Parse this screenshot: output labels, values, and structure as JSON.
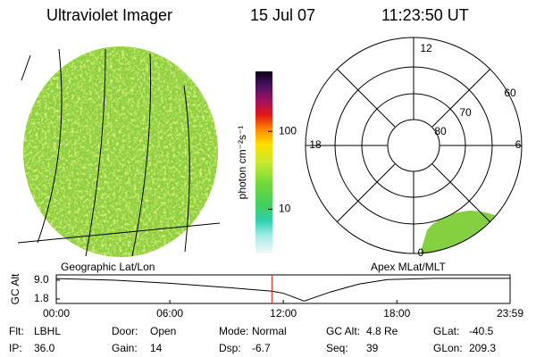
{
  "header": {
    "instrument": "Ultraviolet Imager",
    "date": "15 Jul 07",
    "time": "11:23:50 UT"
  },
  "colorbar": {
    "label": "photon cm⁻²s⁻¹",
    "log": true,
    "lim": [
      2.7,
      590
    ],
    "ticks": [
      10,
      100
    ]
  },
  "left_panel": {
    "label": "Geographic Lat/Lon"
  },
  "right_panel": {
    "label": "Apex MLat/MLT",
    "mlt_labels": [
      "12",
      "6",
      "0",
      "18"
    ],
    "mlat_labels": [
      "60",
      "70",
      "80"
    ]
  },
  "timeline": {
    "ylabel": "GC Alt",
    "xlim": [
      0,
      23.983
    ],
    "ylim": [
      0.1,
      11
    ],
    "xticks": [
      {
        "value": 0,
        "label": "00:00"
      },
      {
        "value": 6,
        "label": "06:00"
      },
      {
        "value": 12,
        "label": "12:00"
      },
      {
        "value": 18,
        "label": "18:00"
      },
      {
        "value": 23.983,
        "label": "23:59"
      }
    ],
    "yticks": [
      {
        "value": 9,
        "label": "9.0"
      },
      {
        "value": 1.8,
        "label": "1.8"
      }
    ],
    "x": [
      0,
      3,
      6,
      9,
      11.4,
      12,
      13.1,
      14.5,
      16,
      17.5,
      20,
      23.983
    ],
    "values": [
      9.6,
      9.0,
      7.8,
      6.2,
      4.8,
      4.0,
      1.0,
      4.5,
      7.5,
      9.2,
      9.7,
      9.7
    ],
    "marker": 11.397,
    "marker_color": "#e8221c",
    "color": "#000000"
  },
  "footer": {
    "rows": [
      [
        {
          "label": "Flt:",
          "value": "LBHL"
        },
        {
          "label": "Door:",
          "value": "Open"
        },
        {
          "label": "Mode:",
          "value": "Normal"
        },
        {
          "label": "GC Alt:",
          "value": "4.8 Re"
        },
        {
          "label": "GLat:",
          "value": "-40.5"
        }
      ],
      [
        {
          "label": "IP:",
          "value": "36.0"
        },
        {
          "label": "Gain:",
          "value": "14"
        },
        {
          "label": "Dsp:",
          "value": "-6.7"
        },
        {
          "label": "Seq:",
          "value": "39"
        },
        {
          "label": "GLon:",
          "value": "209.3"
        }
      ]
    ]
  }
}
